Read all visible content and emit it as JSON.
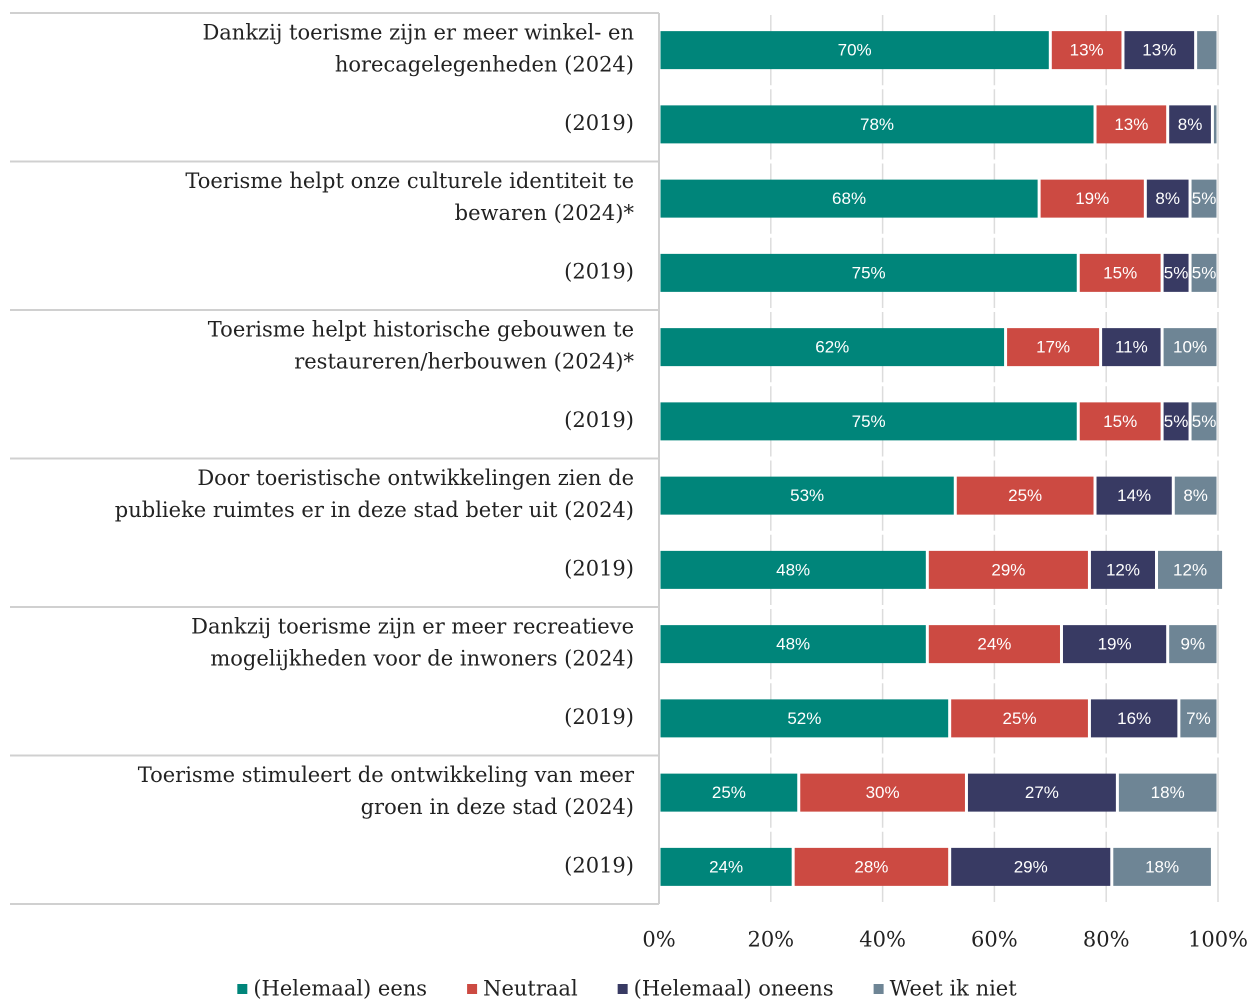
{
  "chart_data": {
    "type": "stacked_bar_horizontal",
    "categories": [
      [
        "Dankzij toerisme zijn er meer winkel- en",
        "horecagelegenheden (2024)"
      ],
      [
        "(2019)"
      ],
      [
        "Toerisme helpt onze culturele identiteit te",
        "bewaren (2024)*"
      ],
      [
        "(2019)"
      ],
      [
        "Toerisme helpt historische gebouwen te",
        "restaureren/herbouwen (2024)*"
      ],
      [
        "(2019)"
      ],
      [
        "Door toeristische ontwikkelingen zien de",
        "publieke ruimtes er in deze stad beter uit (2024)"
      ],
      [
        "(2019)"
      ],
      [
        "Dankzij toerisme zijn er meer recreatieve",
        "mogelijkheden voor de inwoners  (2024)"
      ],
      [
        "(2019)"
      ],
      [
        "Toerisme stimuleert de ontwikkeling van meer",
        "groen in deze stad (2024)"
      ],
      [
        "(2019)"
      ]
    ],
    "series": [
      {
        "name": "(Helemaal) eens",
        "color": "#00857a",
        "values": [
          70,
          78,
          68,
          75,
          62,
          75,
          53,
          48,
          48,
          52,
          25,
          24
        ],
        "value_labels": [
          "70%",
          "78%",
          "68%",
          "75%",
          "62%",
          "75%",
          "53%",
          "48%",
          "48%",
          "52%",
          "25%",
          "24%"
        ]
      },
      {
        "name": "Neutraal",
        "color": "#cc4a42",
        "values": [
          13,
          13,
          19,
          15,
          17,
          15,
          25,
          29,
          24,
          25,
          30,
          28
        ],
        "value_labels": [
          "13%",
          "13%",
          "19%",
          "15%",
          "17%",
          "15%",
          "25%",
          "29%",
          "24%",
          "25%",
          "30%",
          "28%"
        ]
      },
      {
        "name": "(Helemaal) oneens",
        "color": "#383a63",
        "values": [
          13,
          8,
          8,
          5,
          11,
          5,
          14,
          12,
          19,
          16,
          27,
          29
        ],
        "value_labels": [
          "13%",
          "8%",
          "8%",
          "5%",
          "11%",
          "5%",
          "14%",
          "12%",
          "19%",
          "16%",
          "27%",
          "29%"
        ]
      },
      {
        "name": "Weet ik niet",
        "color": "#6e8595",
        "values": [
          4,
          1,
          5,
          5,
          10,
          5,
          8,
          12,
          9,
          7,
          18,
          18
        ],
        "value_labels": [
          null,
          null,
          "5%",
          "5%",
          "10%",
          "5%",
          "8%",
          "12%",
          "9%",
          "7%",
          "18%",
          "18%"
        ]
      }
    ],
    "xlim": [
      0,
      100
    ],
    "xticks": [
      {
        "value": 0,
        "label": "0%"
      },
      {
        "value": 20,
        "label": "20%"
      },
      {
        "value": 40,
        "label": "40%"
      },
      {
        "value": 60,
        "label": "60%"
      },
      {
        "value": 80,
        "label": "80%"
      },
      {
        "value": 100,
        "label": "100%"
      }
    ],
    "grid": true,
    "legend": "bottom"
  }
}
